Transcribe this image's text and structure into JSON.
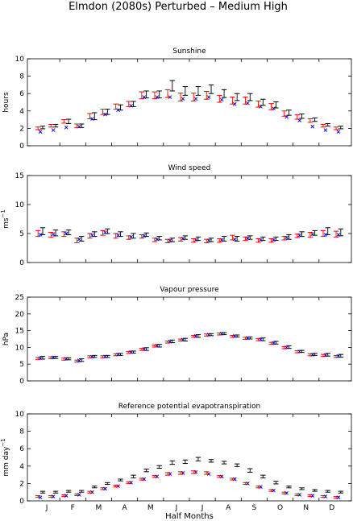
{
  "figure": {
    "title": "Elmdon (2080s) Perturbed – Medium High",
    "xlabel": "Half Months",
    "month_labels": [
      "J",
      "F",
      "M",
      "A",
      "M",
      "J",
      "J",
      "A",
      "S",
      "O",
      "N",
      "D"
    ],
    "colors": {
      "black": "#000000",
      "red": "#ff0000",
      "blue": "#0000cc"
    }
  },
  "chart_data": [
    {
      "type": "scatter",
      "title": "Sunshine",
      "ylabel": "hours",
      "ylim": [
        0,
        10
      ],
      "yticks": [
        0,
        2,
        4,
        6,
        8,
        10
      ],
      "x": [
        1,
        2,
        3,
        4,
        5,
        6,
        7,
        8,
        9,
        10,
        11,
        12,
        13,
        14,
        15,
        16,
        17,
        18,
        19,
        20,
        21,
        22,
        23,
        24
      ],
      "series": [
        {
          "color": "#000000",
          "marker": "errorbar",
          "center": [
            2.1,
            2.3,
            2.8,
            2.3,
            3.4,
            3.9,
            4.4,
            4.8,
            5.9,
            5.9,
            6.9,
            6.3,
            6.3,
            6.5,
            6.0,
            5.6,
            5.6,
            5.0,
            4.7,
            3.8,
            3.4,
            3.0,
            2.4,
            2.1
          ],
          "half": [
            0.15,
            0.15,
            0.25,
            0.2,
            0.4,
            0.3,
            0.3,
            0.3,
            0.4,
            0.4,
            0.6,
            0.5,
            0.5,
            0.5,
            0.45,
            0.4,
            0.4,
            0.35,
            0.35,
            0.3,
            0.25,
            0.2,
            0.15,
            0.15
          ]
        },
        {
          "color": "#ff0000",
          "marker": "errorbar",
          "center": [
            2.0,
            2.3,
            2.8,
            2.3,
            3.4,
            3.9,
            4.5,
            4.8,
            5.8,
            5.8,
            6.0,
            5.6,
            5.6,
            5.8,
            5.4,
            5.2,
            5.2,
            4.8,
            4.5,
            3.7,
            3.3,
            2.9,
            2.3,
            2.0
          ],
          "half": [
            0.15,
            0.15,
            0.2,
            0.2,
            0.3,
            0.3,
            0.3,
            0.3,
            0.4,
            0.4,
            0.45,
            0.45,
            0.45,
            0.45,
            0.4,
            0.4,
            0.4,
            0.35,
            0.35,
            0.3,
            0.25,
            0.2,
            0.15,
            0.15
          ]
        },
        {
          "color": "#0000cc",
          "marker": "x",
          "values": [
            1.6,
            1.8,
            2.1,
            2.2,
            3.1,
            3.6,
            4.1,
            4.6,
            5.6,
            5.6,
            5.6,
            5.4,
            5.4,
            5.6,
            5.3,
            4.8,
            4.9,
            4.5,
            4.3,
            3.3,
            2.9,
            2.2,
            1.8,
            1.6
          ]
        }
      ]
    },
    {
      "type": "scatter",
      "title": "Wind speed",
      "ylabel": "ms",
      "ylabel_sup": "−1",
      "ylim": [
        0,
        15
      ],
      "yticks": [
        0,
        5,
        10,
        15
      ],
      "x": [
        1,
        2,
        3,
        4,
        5,
        6,
        7,
        8,
        9,
        10,
        11,
        12,
        13,
        14,
        15,
        16,
        17,
        18,
        19,
        20,
        21,
        22,
        23,
        24
      ],
      "series": [
        {
          "color": "#000000",
          "marker": "errorbar",
          "center": [
            5.4,
            5.1,
            5.2,
            4.1,
            4.9,
            5.4,
            4.9,
            4.6,
            4.8,
            4.2,
            3.9,
            4.3,
            4.1,
            3.9,
            4.1,
            4.1,
            4.3,
            4.1,
            4.1,
            4.4,
            4.9,
            5.1,
            5.4,
            5.2
          ],
          "half": [
            0.6,
            0.5,
            0.4,
            0.4,
            0.4,
            0.4,
            0.4,
            0.4,
            0.3,
            0.3,
            0.3,
            0.3,
            0.3,
            0.3,
            0.4,
            0.4,
            0.3,
            0.3,
            0.3,
            0.4,
            0.4,
            0.4,
            0.6,
            0.6
          ]
        },
        {
          "color": "#ff0000",
          "marker": "errorbar",
          "center": [
            5.0,
            4.8,
            4.9,
            3.8,
            4.6,
            5.1,
            4.6,
            4.3,
            4.5,
            3.9,
            3.7,
            4.0,
            3.8,
            3.7,
            3.8,
            4.3,
            4.1,
            3.8,
            3.8,
            4.2,
            4.6,
            4.8,
            5.0,
            4.9
          ],
          "half": [
            0.5,
            0.4,
            0.4,
            0.4,
            0.4,
            0.4,
            0.4,
            0.3,
            0.3,
            0.3,
            0.3,
            0.3,
            0.3,
            0.3,
            0.3,
            0.4,
            0.3,
            0.3,
            0.3,
            0.3,
            0.3,
            0.4,
            0.5,
            0.5
          ]
        },
        {
          "color": "#0000cc",
          "marker": "x",
          "values": [
            4.8,
            4.9,
            5.0,
            4.0,
            4.7,
            5.2,
            4.7,
            4.4,
            4.6,
            4.0,
            3.8,
            4.1,
            3.9,
            3.8,
            3.9,
            4.0,
            4.2,
            3.9,
            3.9,
            4.3,
            4.7,
            4.9,
            4.8,
            4.8
          ]
        }
      ]
    },
    {
      "type": "scatter",
      "title": "Vapour pressure",
      "ylabel": "hPa",
      "ylim": [
        0,
        25
      ],
      "yticks": [
        0,
        5,
        10,
        15,
        20,
        25
      ],
      "x": [
        1,
        2,
        3,
        4,
        5,
        6,
        7,
        8,
        9,
        10,
        11,
        12,
        13,
        14,
        15,
        16,
        17,
        18,
        19,
        20,
        21,
        22,
        23,
        24
      ],
      "series": [
        {
          "color": "#000000",
          "marker": "errorbar",
          "center": [
            6.9,
            7.0,
            6.6,
            6.2,
            7.3,
            7.3,
            7.9,
            8.6,
            9.5,
            10.5,
            11.8,
            12.3,
            13.4,
            13.8,
            14.1,
            13.4,
            12.8,
            12.4,
            11.4,
            10.1,
            8.8,
            7.9,
            7.8,
            7.5
          ],
          "half": [
            0.4,
            0.3,
            0.3,
            0.4,
            0.3,
            0.3,
            0.3,
            0.3,
            0.4,
            0.4,
            0.4,
            0.4,
            0.4,
            0.3,
            0.3,
            0.3,
            0.3,
            0.4,
            0.4,
            0.4,
            0.3,
            0.3,
            0.4,
            0.4
          ]
        },
        {
          "color": "#ff0000",
          "marker": "errorbar",
          "center": [
            6.7,
            6.9,
            6.5,
            5.9,
            7.2,
            7.2,
            7.8,
            8.5,
            9.4,
            10.4,
            11.6,
            12.2,
            13.3,
            13.7,
            14.0,
            13.3,
            12.7,
            12.3,
            11.2,
            9.9,
            8.7,
            7.8,
            7.6,
            7.3
          ],
          "half": [
            0.3,
            0.3,
            0.3,
            0.3,
            0.3,
            0.3,
            0.3,
            0.3,
            0.3,
            0.3,
            0.3,
            0.3,
            0.3,
            0.3,
            0.3,
            0.3,
            0.3,
            0.3,
            0.3,
            0.3,
            0.3,
            0.3,
            0.3,
            0.3
          ]
        },
        {
          "color": "#0000cc",
          "marker": "x",
          "values": [
            6.8,
            7.0,
            6.6,
            6.1,
            7.2,
            7.3,
            7.9,
            8.6,
            9.5,
            10.5,
            11.7,
            12.3,
            13.4,
            13.8,
            14.1,
            13.4,
            12.8,
            12.4,
            11.3,
            10.0,
            8.8,
            7.8,
            7.7,
            7.4
          ]
        }
      ]
    },
    {
      "type": "scatter",
      "title": "Reference potential evapotranspiration",
      "ylabel": "mm day",
      "ylabel_sup": "−1",
      "ylim": [
        0,
        10
      ],
      "yticks": [
        0,
        2,
        4,
        6,
        8,
        10
      ],
      "x": [
        1,
        2,
        3,
        4,
        5,
        6,
        7,
        8,
        9,
        10,
        11,
        12,
        13,
        14,
        15,
        16,
        17,
        18,
        19,
        20,
        21,
        22,
        23,
        24
      ],
      "series": [
        {
          "color": "#000000",
          "marker": "errorbar",
          "center": [
            1.0,
            1.0,
            1.1,
            1.1,
            1.6,
            2.0,
            2.4,
            2.8,
            3.5,
            3.9,
            4.4,
            4.5,
            4.8,
            4.6,
            4.4,
            4.1,
            3.5,
            2.8,
            2.1,
            1.6,
            1.4,
            1.2,
            1.1,
            1.0
          ],
          "half": [
            0.1,
            0.1,
            0.1,
            0.1,
            0.1,
            0.1,
            0.1,
            0.15,
            0.15,
            0.15,
            0.2,
            0.2,
            0.2,
            0.15,
            0.15,
            0.15,
            0.2,
            0.15,
            0.15,
            0.1,
            0.1,
            0.1,
            0.1,
            0.1
          ]
        },
        {
          "color": "#ff0000",
          "marker": "errorbar",
          "center": [
            0.5,
            0.5,
            0.6,
            0.7,
            1.0,
            1.4,
            1.7,
            2.1,
            2.5,
            2.8,
            3.1,
            3.2,
            3.3,
            3.2,
            2.8,
            2.5,
            2.0,
            1.6,
            1.2,
            0.9,
            0.7,
            0.6,
            0.5,
            0.4
          ],
          "half": [
            0.1,
            0.1,
            0.1,
            0.1,
            0.1,
            0.1,
            0.1,
            0.1,
            0.1,
            0.1,
            0.15,
            0.15,
            0.15,
            0.15,
            0.1,
            0.1,
            0.1,
            0.1,
            0.1,
            0.1,
            0.1,
            0.1,
            0.1,
            0.1
          ]
        },
        {
          "color": "#0000cc",
          "marker": "x",
          "values": [
            0.4,
            0.5,
            0.6,
            0.7,
            1.0,
            1.4,
            1.7,
            2.1,
            2.5,
            2.8,
            3.1,
            3.2,
            3.3,
            3.1,
            2.8,
            2.5,
            2.0,
            1.6,
            1.2,
            0.9,
            0.7,
            0.6,
            0.5,
            0.4
          ]
        }
      ]
    }
  ]
}
